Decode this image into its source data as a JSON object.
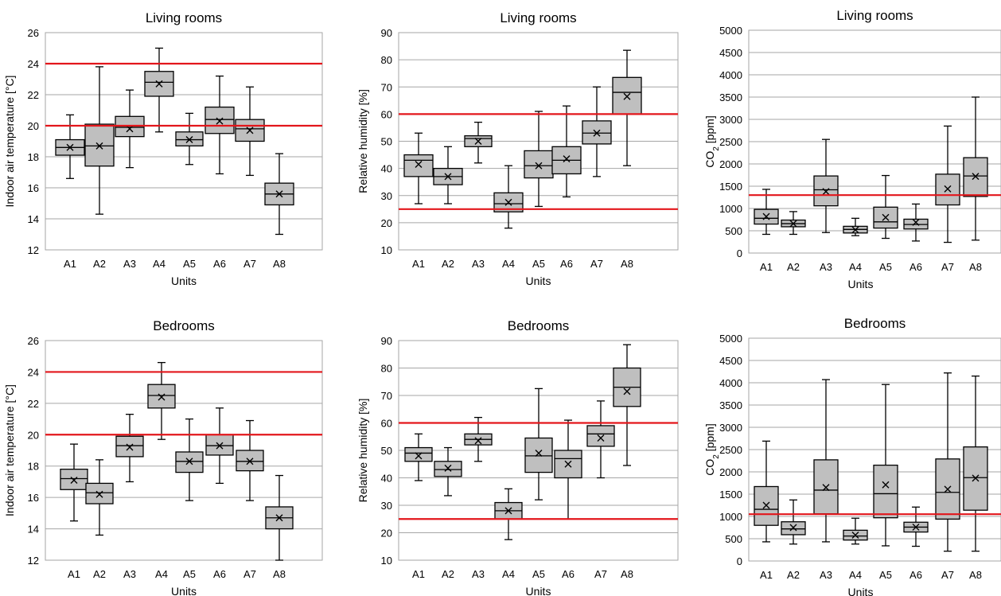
{
  "figure": {
    "colors": {
      "box_fill": "#bfbfbf",
      "line": "#000000",
      "grid": "#a6a6a6",
      "threshold": "#e3161b",
      "frame": "#a6a6a6"
    }
  },
  "chart_data": [
    {
      "type": "box",
      "title": "Living rooms",
      "xlabel": "Units",
      "ylabel": "Indoor air temperature [°C]",
      "ylim": [
        12,
        26
      ],
      "yticks": [
        12,
        14,
        16,
        18,
        20,
        22,
        24,
        26
      ],
      "grid": true,
      "categories": [
        "A1",
        "A2",
        "A3",
        "A4",
        "A5",
        "A6",
        "A7",
        "A8"
      ],
      "boxes": [
        {
          "min": 16.6,
          "q1": 18.1,
          "median": 18.6,
          "q3": 19.1,
          "max": 20.7,
          "mean": 18.6
        },
        {
          "min": 14.3,
          "q1": 17.4,
          "median": 18.7,
          "q3": 20.1,
          "max": 23.8,
          "mean": 18.7
        },
        {
          "min": 17.3,
          "q1": 19.3,
          "median": 19.9,
          "q3": 20.6,
          "max": 22.3,
          "mean": 19.8
        },
        {
          "min": 19.6,
          "q1": 21.9,
          "median": 22.8,
          "q3": 23.5,
          "max": 25.0,
          "mean": 22.7
        },
        {
          "min": 17.5,
          "q1": 18.7,
          "median": 19.1,
          "q3": 19.6,
          "max": 20.8,
          "mean": 19.1
        },
        {
          "min": 16.9,
          "q1": 19.5,
          "median": 20.4,
          "q3": 21.2,
          "max": 23.2,
          "mean": 20.3
        },
        {
          "min": 16.8,
          "q1": 19.0,
          "median": 19.8,
          "q3": 20.4,
          "max": 22.5,
          "mean": 19.7
        },
        {
          "min": 13.0,
          "q1": 14.9,
          "median": 15.6,
          "q3": 16.3,
          "max": 18.2,
          "mean": 15.6
        }
      ],
      "thresholds": [
        20,
        24
      ]
    },
    {
      "type": "box",
      "title": "Living rooms",
      "xlabel": "Units",
      "ylabel": "Relative humidity [%]",
      "ylim": [
        10,
        90
      ],
      "yticks": [
        10,
        20,
        30,
        40,
        50,
        60,
        70,
        80,
        90
      ],
      "grid": true,
      "categories": [
        "A1",
        "A2",
        "A3",
        "A4",
        "A5",
        "A6",
        "A7",
        "A8"
      ],
      "boxes": [
        {
          "min": 27,
          "q1": 37,
          "median": 43,
          "q3": 45,
          "max": 53,
          "mean": 41.5
        },
        {
          "min": 27,
          "q1": 34,
          "median": 37,
          "q3": 40,
          "max": 48,
          "mean": 37
        },
        {
          "min": 42,
          "q1": 48,
          "median": 51,
          "q3": 52,
          "max": 57,
          "mean": 50
        },
        {
          "min": 18,
          "q1": 24,
          "median": 27,
          "q3": 31,
          "max": 41,
          "mean": 27.5
        },
        {
          "min": 26,
          "q1": 36.5,
          "median": 41,
          "q3": 46.5,
          "max": 61,
          "mean": 41
        },
        {
          "min": 29.5,
          "q1": 38,
          "median": 43,
          "q3": 48,
          "max": 63,
          "mean": 43.5
        },
        {
          "min": 37,
          "q1": 49,
          "median": 53,
          "q3": 57.5,
          "max": 70,
          "mean": 53
        },
        {
          "min": 41,
          "q1": 60,
          "median": 68,
          "q3": 73.5,
          "max": 83.5,
          "mean": 66.5
        }
      ],
      "thresholds": [
        25,
        60
      ]
    },
    {
      "type": "box",
      "title": "Living rooms",
      "xlabel": "Units",
      "ylabel": "CO",
      "ylabel_sub": "2",
      "ylabel_unit": "[ppm]",
      "ylim": [
        0,
        5000
      ],
      "yticks": [
        0,
        500,
        1000,
        1500,
        2000,
        2500,
        3000,
        3500,
        4000,
        4500,
        5000
      ],
      "grid": true,
      "categories": [
        "A1",
        "A2",
        "A3",
        "A4",
        "A5",
        "A6",
        "A7",
        "A8"
      ],
      "boxes": [
        {
          "min": 420,
          "q1": 650,
          "median": 780,
          "q3": 980,
          "max": 1430,
          "mean": 820
        },
        {
          "min": 420,
          "q1": 590,
          "median": 660,
          "q3": 740,
          "max": 930,
          "mean": 660
        },
        {
          "min": 460,
          "q1": 1060,
          "median": 1420,
          "q3": 1730,
          "max": 2550,
          "mean": 1380
        },
        {
          "min": 390,
          "q1": 450,
          "median": 530,
          "q3": 600,
          "max": 780,
          "mean": 520
        },
        {
          "min": 330,
          "q1": 560,
          "median": 700,
          "q3": 1030,
          "max": 1740,
          "mean": 800
        },
        {
          "min": 270,
          "q1": 540,
          "median": 640,
          "q3": 760,
          "max": 1100,
          "mean": 690
        },
        {
          "min": 240,
          "q1": 1080,
          "median": 1300,
          "q3": 1770,
          "max": 2850,
          "mean": 1440
        },
        {
          "min": 290,
          "q1": 1270,
          "median": 1730,
          "q3": 2140,
          "max": 3500,
          "mean": 1720
        }
      ],
      "thresholds": [
        1300
      ]
    },
    {
      "type": "box",
      "title": "Bedrooms",
      "xlabel": "Units",
      "ylabel": "Indoor air temperature [°C]",
      "ylim": [
        12,
        26
      ],
      "yticks": [
        12,
        14,
        16,
        18,
        20,
        22,
        24,
        26
      ],
      "grid": true,
      "categories": [
        "A1",
        "A2",
        "A3",
        "A4",
        "A5",
        "A6",
        "A7",
        "A8"
      ],
      "boxes": [
        {
          "min": 14.5,
          "q1": 16.5,
          "median": 17.2,
          "q3": 17.8,
          "max": 19.4,
          "mean": 17.1
        },
        {
          "min": 13.6,
          "q1": 15.6,
          "median": 16.3,
          "q3": 16.9,
          "max": 18.4,
          "mean": 16.2
        },
        {
          "min": 17.0,
          "q1": 18.6,
          "median": 19.3,
          "q3": 19.9,
          "max": 21.3,
          "mean": 19.2
        },
        {
          "min": 19.7,
          "q1": 21.7,
          "median": 22.5,
          "q3": 23.2,
          "max": 24.6,
          "mean": 22.4
        },
        {
          "min": 15.8,
          "q1": 17.6,
          "median": 18.3,
          "q3": 18.9,
          "max": 21.0,
          "mean": 18.3
        },
        {
          "min": 16.9,
          "q1": 18.7,
          "median": 19.3,
          "q3": 20.0,
          "max": 21.7,
          "mean": 19.3
        },
        {
          "min": 15.8,
          "q1": 17.7,
          "median": 18.3,
          "q3": 19.0,
          "max": 20.9,
          "mean": 18.3
        },
        {
          "min": 12.0,
          "q1": 14.0,
          "median": 14.7,
          "q3": 15.4,
          "max": 17.4,
          "mean": 14.7
        }
      ],
      "thresholds": [
        20,
        24
      ]
    },
    {
      "type": "box",
      "title": "Bedrooms",
      "xlabel": "Units",
      "ylabel": "Relative humidity [%]",
      "ylim": [
        10,
        90
      ],
      "yticks": [
        10,
        20,
        30,
        40,
        50,
        60,
        70,
        80,
        90
      ],
      "grid": true,
      "categories": [
        "A1",
        "A2",
        "A3",
        "A4",
        "A5",
        "A6",
        "A7",
        "A8"
      ],
      "boxes": [
        {
          "min": 39,
          "q1": 46,
          "median": 49,
          "q3": 51,
          "max": 56,
          "mean": 48
        },
        {
          "min": 33.5,
          "q1": 40.5,
          "median": 43,
          "q3": 46,
          "max": 51,
          "mean": 43.5
        },
        {
          "min": 46,
          "q1": 52,
          "median": 54,
          "q3": 56,
          "max": 62,
          "mean": 53.5
        },
        {
          "min": 17.5,
          "q1": 25,
          "median": 28,
          "q3": 31,
          "max": 36,
          "mean": 28
        },
        {
          "min": 32,
          "q1": 42,
          "median": 48,
          "q3": 54.5,
          "max": 72.5,
          "mean": 49
        },
        {
          "min": 25,
          "q1": 40,
          "median": 47,
          "q3": 50,
          "max": 61,
          "mean": 45
        },
        {
          "min": 40,
          "q1": 51.5,
          "median": 56,
          "q3": 59,
          "max": 68,
          "mean": 54.5
        },
        {
          "min": 44.5,
          "q1": 66,
          "median": 73,
          "q3": 80,
          "max": 88.5,
          "mean": 71.5
        }
      ],
      "thresholds": [
        25,
        60
      ]
    },
    {
      "type": "box",
      "title": "Bedrooms",
      "xlabel": "Units",
      "ylabel": "CO",
      "ylabel_sub": "2",
      "ylabel_unit": "[ppm]",
      "ylim": [
        0,
        5000
      ],
      "yticks": [
        0,
        500,
        1000,
        1500,
        2000,
        2500,
        3000,
        3500,
        4000,
        4500,
        5000
      ],
      "grid": true,
      "categories": [
        "A1",
        "A2",
        "A3",
        "A4",
        "A5",
        "A6",
        "A7",
        "A8"
      ],
      "boxes": [
        {
          "min": 430,
          "q1": 800,
          "median": 1160,
          "q3": 1670,
          "max": 2690,
          "mean": 1250
        },
        {
          "min": 380,
          "q1": 590,
          "median": 720,
          "q3": 880,
          "max": 1370,
          "mean": 750
        },
        {
          "min": 430,
          "q1": 1060,
          "median": 1590,
          "q3": 2270,
          "max": 4070,
          "mean": 1650
        },
        {
          "min": 380,
          "q1": 470,
          "median": 560,
          "q3": 690,
          "max": 960,
          "mean": 580
        },
        {
          "min": 340,
          "q1": 970,
          "median": 1510,
          "q3": 2150,
          "max": 3960,
          "mean": 1710
        },
        {
          "min": 330,
          "q1": 650,
          "median": 760,
          "q3": 870,
          "max": 1210,
          "mean": 760
        },
        {
          "min": 220,
          "q1": 940,
          "median": 1540,
          "q3": 2290,
          "max": 4220,
          "mean": 1610
        },
        {
          "min": 220,
          "q1": 1140,
          "median": 1870,
          "q3": 2560,
          "max": 4150,
          "mean": 1860
        }
      ],
      "thresholds": [
        1050
      ]
    }
  ]
}
